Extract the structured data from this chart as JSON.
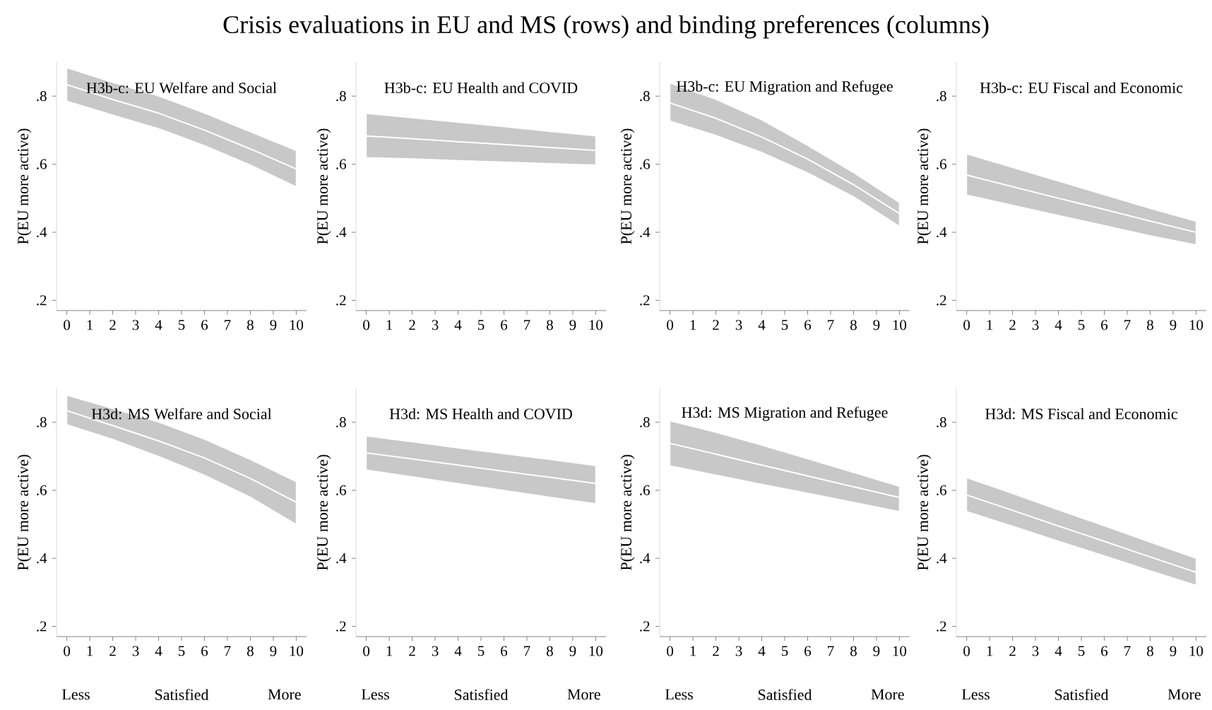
{
  "chart_data": [
    {
      "type": "line",
      "title": "H3b-c: EU Welfare and Social",
      "ylabel": "P(EU more active)",
      "xlim": [
        -0.45,
        10.45
      ],
      "ylim": [
        0.17,
        0.9
      ],
      "xticks": [
        0,
        1,
        2,
        3,
        4,
        5,
        6,
        7,
        8,
        9,
        10
      ],
      "yticks": [
        {
          "value": 0.2,
          "label": ".2"
        },
        {
          "value": 0.4,
          "label": ".4"
        },
        {
          "value": 0.6,
          "label": ".6"
        },
        {
          "value": 0.8,
          "label": ".8"
        }
      ],
      "annotations": [
        "Crisis evaluations in EU and MS (rows) and binding preferences (columns)"
      ],
      "series": [
        {
          "color": "#ffffff",
          "x": [
            0,
            2,
            4,
            6,
            8,
            10
          ],
          "values": [
            0.834,
            0.79,
            0.75,
            0.7,
            0.645,
            0.586
          ],
          "lower": [
            0.786,
            0.745,
            0.705,
            0.655,
            0.598,
            0.534
          ],
          "upper": [
            0.883,
            0.84,
            0.8,
            0.75,
            0.695,
            0.64
          ]
        }
      ]
    },
    {
      "type": "line",
      "title": "H3b-c: EU Health and COVID",
      "ylabel": "P(EU more active)",
      "xlim": [
        -0.45,
        10.45
      ],
      "ylim": [
        0.17,
        0.9
      ],
      "xticks": [
        0,
        1,
        2,
        3,
        4,
        5,
        6,
        7,
        8,
        9,
        10
      ],
      "yticks": [
        {
          "value": 0.2,
          "label": ".2"
        },
        {
          "value": 0.4,
          "label": ".4"
        },
        {
          "value": 0.6,
          "label": ".6"
        },
        {
          "value": 0.8,
          "label": ".8"
        }
      ],
      "series": [
        {
          "color": "#ffffff",
          "x": [
            0,
            2,
            4,
            6,
            8,
            10
          ],
          "values": [
            0.683,
            0.675,
            0.666,
            0.658,
            0.649,
            0.641
          ],
          "lower": [
            0.62,
            0.616,
            0.611,
            0.607,
            0.602,
            0.598
          ],
          "upper": [
            0.749,
            0.736,
            0.723,
            0.71,
            0.696,
            0.683
          ]
        }
      ]
    },
    {
      "type": "line",
      "title": "H3b-c: EU Migration and Refugee",
      "ylabel": "P(EU more active)",
      "xlim": [
        -0.45,
        10.45
      ],
      "ylim": [
        0.17,
        0.9
      ],
      "xticks": [
        0,
        1,
        2,
        3,
        4,
        5,
        6,
        7,
        8,
        9,
        10
      ],
      "yticks": [
        {
          "value": 0.2,
          "label": ".2"
        },
        {
          "value": 0.4,
          "label": ".4"
        },
        {
          "value": 0.6,
          "label": ".6"
        },
        {
          "value": 0.8,
          "label": ".8"
        }
      ],
      "series": [
        {
          "color": "#ffffff",
          "x": [
            0,
            2,
            4,
            6,
            8,
            10
          ],
          "values": [
            0.78,
            0.735,
            0.68,
            0.615,
            0.54,
            0.455
          ],
          "lower": [
            0.727,
            0.685,
            0.635,
            0.575,
            0.505,
            0.418
          ],
          "upper": [
            0.838,
            0.79,
            0.73,
            0.655,
            0.575,
            0.487
          ]
        }
      ]
    },
    {
      "type": "line",
      "title": "H3b-c: EU Fiscal and Economic",
      "ylabel": "P(EU more active)",
      "xlim": [
        -0.45,
        10.45
      ],
      "ylim": [
        0.17,
        0.9
      ],
      "xticks": [
        0,
        1,
        2,
        3,
        4,
        5,
        6,
        7,
        8,
        9,
        10
      ],
      "yticks": [
        {
          "value": 0.2,
          "label": ".2"
        },
        {
          "value": 0.4,
          "label": ".4"
        },
        {
          "value": 0.6,
          "label": ".6"
        },
        {
          "value": 0.8,
          "label": ".8"
        }
      ],
      "series": [
        {
          "color": "#ffffff",
          "x": [
            0,
            2,
            4,
            6,
            8,
            10
          ],
          "values": [
            0.568,
            0.534,
            0.5,
            0.467,
            0.433,
            0.4
          ],
          "lower": [
            0.51,
            0.48,
            0.45,
            0.42,
            0.39,
            0.363
          ],
          "upper": [
            0.63,
            0.59,
            0.55,
            0.51,
            0.47,
            0.432
          ]
        }
      ]
    },
    {
      "type": "line",
      "title": "H3d: MS Welfare and Social",
      "ylabel": "P(EU more active)",
      "xlim": [
        -0.45,
        10.45
      ],
      "ylim": [
        0.17,
        0.9
      ],
      "xticks": [
        0,
        1,
        2,
        3,
        4,
        5,
        6,
        7,
        8,
        9,
        10
      ],
      "yticks": [
        {
          "value": 0.2,
          "label": ".2"
        },
        {
          "value": 0.4,
          "label": ".4"
        },
        {
          "value": 0.6,
          "label": ".6"
        },
        {
          "value": 0.8,
          "label": ".8"
        }
      ],
      "annotations": [
        "Less",
        "Satisfied",
        "More"
      ],
      "series": [
        {
          "color": "#ffffff",
          "x": [
            0,
            2,
            4,
            6,
            8,
            10
          ],
          "values": [
            0.834,
            0.79,
            0.745,
            0.695,
            0.635,
            0.565
          ],
          "lower": [
            0.793,
            0.75,
            0.7,
            0.645,
            0.58,
            0.5
          ],
          "upper": [
            0.879,
            0.84,
            0.8,
            0.75,
            0.69,
            0.625
          ]
        }
      ]
    },
    {
      "type": "line",
      "title": "H3d: MS Health and COVID",
      "ylabel": "P(EU more active)",
      "xlim": [
        -0.45,
        10.45
      ],
      "ylim": [
        0.17,
        0.9
      ],
      "xticks": [
        0,
        1,
        2,
        3,
        4,
        5,
        6,
        7,
        8,
        9,
        10
      ],
      "yticks": [
        {
          "value": 0.2,
          "label": ".2"
        },
        {
          "value": 0.4,
          "label": ".4"
        },
        {
          "value": 0.6,
          "label": ".6"
        },
        {
          "value": 0.8,
          "label": ".8"
        }
      ],
      "annotations": [
        "Less",
        "Satisfied",
        "More"
      ],
      "series": [
        {
          "color": "#ffffff",
          "x": [
            0,
            2,
            4,
            6,
            8,
            10
          ],
          "values": [
            0.71,
            0.692,
            0.674,
            0.656,
            0.638,
            0.62
          ],
          "lower": [
            0.66,
            0.64,
            0.62,
            0.6,
            0.58,
            0.561
          ],
          "upper": [
            0.759,
            0.742,
            0.724,
            0.707,
            0.69,
            0.672
          ]
        }
      ]
    },
    {
      "type": "line",
      "title": "H3d: MS Migration and Refugee",
      "ylabel": "P(EU more active)",
      "xlim": [
        -0.45,
        10.45
      ],
      "ylim": [
        0.17,
        0.9
      ],
      "xticks": [
        0,
        1,
        2,
        3,
        4,
        5,
        6,
        7,
        8,
        9,
        10
      ],
      "yticks": [
        {
          "value": 0.2,
          "label": ".2"
        },
        {
          "value": 0.4,
          "label": ".4"
        },
        {
          "value": 0.6,
          "label": ".6"
        },
        {
          "value": 0.8,
          "label": ".8"
        }
      ],
      "annotations": [
        "Less",
        "Satisfied",
        "More"
      ],
      "series": [
        {
          "color": "#ffffff",
          "x": [
            0,
            2,
            4,
            6,
            8,
            10
          ],
          "values": [
            0.738,
            0.706,
            0.674,
            0.642,
            0.61,
            0.579
          ],
          "lower": [
            0.672,
            0.645,
            0.618,
            0.592,
            0.565,
            0.538
          ],
          "upper": [
            0.804,
            0.77,
            0.732,
            0.692,
            0.652,
            0.611
          ]
        }
      ]
    },
    {
      "type": "line",
      "title": "H3d: MS Fiscal and Economic",
      "ylabel": "P(EU more active)",
      "xlim": [
        -0.45,
        10.45
      ],
      "ylim": [
        0.17,
        0.9
      ],
      "xticks": [
        0,
        1,
        2,
        3,
        4,
        5,
        6,
        7,
        8,
        9,
        10
      ],
      "yticks": [
        {
          "value": 0.2,
          "label": ".2"
        },
        {
          "value": 0.4,
          "label": ".4"
        },
        {
          "value": 0.6,
          "label": ".6"
        },
        {
          "value": 0.8,
          "label": ".8"
        }
      ],
      "annotations": [
        "Less",
        "Satisfied",
        "More"
      ],
      "series": [
        {
          "color": "#ffffff",
          "x": [
            0,
            2,
            4,
            6,
            8,
            10
          ],
          "values": [
            0.586,
            0.541,
            0.495,
            0.45,
            0.404,
            0.359
          ],
          "lower": [
            0.538,
            0.495,
            0.451,
            0.408,
            0.364,
            0.321
          ],
          "upper": [
            0.637,
            0.59,
            0.542,
            0.495,
            0.447,
            0.4
          ]
        }
      ]
    }
  ]
}
